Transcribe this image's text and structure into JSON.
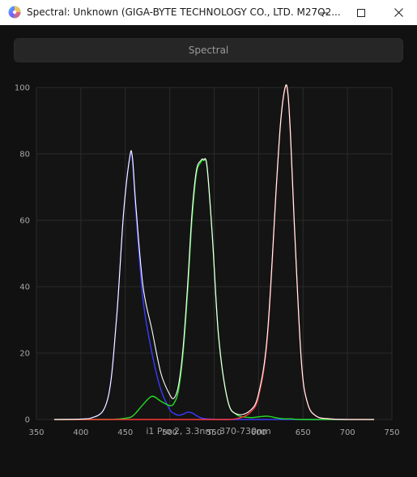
{
  "window": {
    "title": "Spectral: Unknown (GIGA-BYTE TECHNOLOGY CO., LTD. M27Q2...",
    "icon": "colorwheel-icon",
    "controls": [
      "minimize-icon",
      "maximize-icon",
      "close-icon"
    ]
  },
  "mode_button": {
    "label": "Spectral"
  },
  "caption": "i1 Pro 2, 3.3nm, 370-730nm",
  "colors": {
    "background": "#111111",
    "plot_background": "#141414",
    "grid": "#2a2a2a",
    "blue": "#3a3aff",
    "green": "#22dd22",
    "red": "#ff3838",
    "total": "#ffffff"
  },
  "chart_data": {
    "type": "line",
    "xlabel": "",
    "ylabel": "",
    "xlim": [
      350,
      750
    ],
    "ylim": [
      0,
      100
    ],
    "xticks": [
      350,
      400,
      450,
      500,
      550,
      600,
      650,
      700,
      750
    ],
    "yticks": [
      0,
      20,
      40,
      60,
      80,
      100
    ],
    "grid": true,
    "legend": "none",
    "x": [
      370,
      410,
      430,
      440,
      448,
      455,
      458,
      462,
      470,
      480,
      490,
      500,
      505,
      510,
      515,
      520,
      525,
      530,
      535,
      538,
      542,
      548,
      555,
      565,
      575,
      590,
      600,
      610,
      620,
      625,
      630,
      633,
      636,
      640,
      648,
      655,
      665,
      680,
      700,
      730
    ],
    "series": [
      {
        "color": "blue",
        "values": [
          0,
          0.3,
          6,
          30,
          62,
          79,
          78,
          62,
          36,
          20,
          9,
          3,
          1.8,
          1.3,
          1.6,
          2.2,
          2.0,
          1.2,
          0.5,
          0.3,
          0.2,
          0.1,
          0,
          0,
          0,
          0,
          0,
          0,
          0,
          0,
          0,
          0,
          0,
          0,
          0,
          0,
          0,
          0,
          0,
          0
        ]
      },
      {
        "color": "green",
        "values": [
          0,
          0,
          0,
          0.1,
          0.3,
          0.6,
          1,
          2,
          4.5,
          7,
          5.5,
          4.2,
          5,
          9,
          20,
          38,
          60,
          74,
          77.5,
          78,
          76,
          55,
          25,
          6,
          1.5,
          0.6,
          0.8,
          1,
          0.5,
          0.3,
          0.2,
          0.2,
          0.2,
          0.1,
          0,
          0,
          0,
          0,
          0,
          0
        ]
      },
      {
        "color": "red",
        "values": [
          0,
          0,
          0,
          0,
          0,
          0,
          0,
          0,
          0,
          0,
          0,
          0,
          0,
          0,
          0,
          0,
          0,
          0,
          0,
          0,
          0,
          0,
          0,
          0,
          0.2,
          2,
          7,
          25,
          70,
          90,
          100,
          98,
          85,
          60,
          18,
          5,
          1,
          0.2,
          0,
          0
        ]
      },
      {
        "color": "total",
        "values": [
          0,
          0.3,
          6,
          30,
          62,
          79,
          79,
          64,
          40,
          27,
          14,
          7.5,
          6.5,
          10.5,
          21.5,
          40,
          62,
          75,
          78,
          78.3,
          76.2,
          55,
          25,
          6,
          1.7,
          2.6,
          7.8,
          26,
          70.5,
          90.3,
          100.2,
          98.2,
          85.2,
          60.1,
          18,
          5,
          1,
          0.2,
          0,
          0
        ]
      }
    ]
  }
}
